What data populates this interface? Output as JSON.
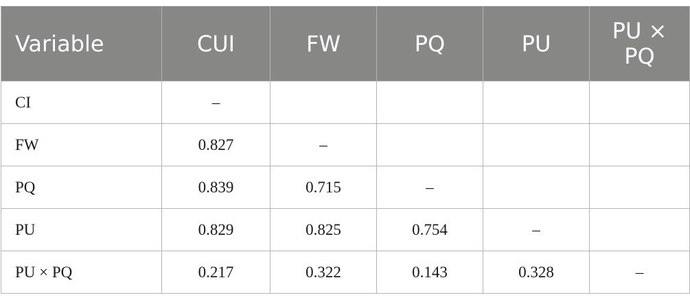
{
  "table": {
    "headers": [
      "Variable",
      "CUI",
      "FW",
      "PQ",
      "PU",
      "PU × PQ"
    ],
    "rows": [
      [
        "CI",
        "–",
        "",
        "",
        "",
        ""
      ],
      [
        "FW",
        "0.827",
        "–",
        "",
        "",
        ""
      ],
      [
        "PQ",
        "0.839",
        "0.715",
        "–",
        "",
        ""
      ],
      [
        "PU",
        "0.829",
        "0.825",
        "0.754",
        "–",
        ""
      ],
      [
        "PU × PQ",
        "0.217",
        "0.322",
        "0.143",
        "0.328",
        "–"
      ]
    ]
  },
  "colors": {
    "header_background": "#878786",
    "header_text": "#ffffff",
    "border": "#b5b5b5",
    "body_text": "#1a1a1a"
  }
}
